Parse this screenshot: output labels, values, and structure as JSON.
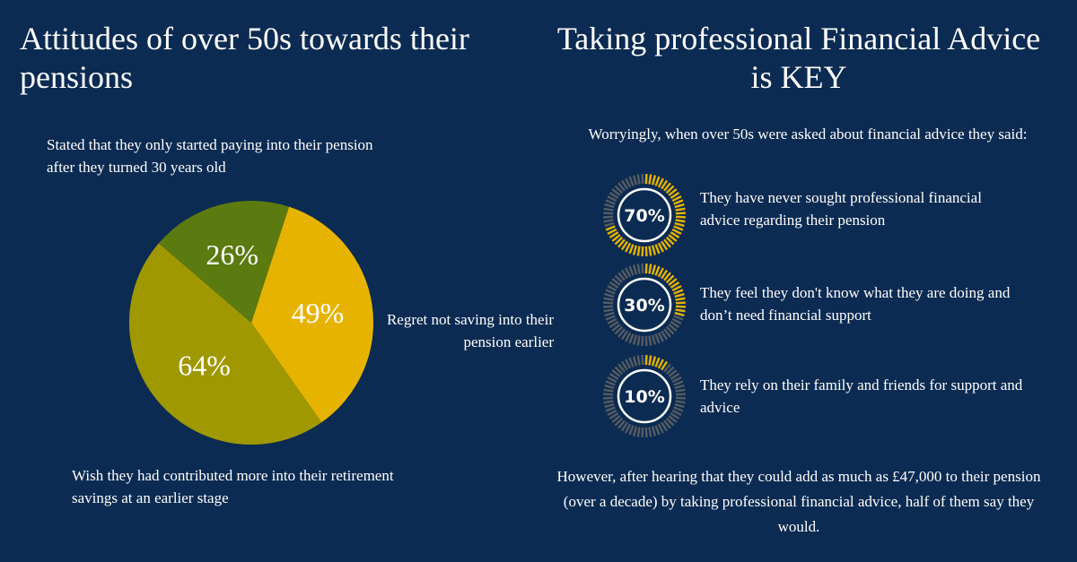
{
  "left_title": "Attitudes of over 50s towards their pensions",
  "right_title": "Taking professional Financial Advice is KEY",
  "chart_data": [
    {
      "type": "pie",
      "title": "Attitudes of over 50s towards their pensions",
      "slices": [
        {
          "label": "Regret not saving into their pension earlier",
          "value": 49,
          "display": "49%",
          "color": "#e6b300"
        },
        {
          "label": "Wish they had contributed more into their retirement savings at an earlier stage",
          "value": 64,
          "display": "64%",
          "color": "#9f9800"
        },
        {
          "label": "Stated that they only started paying into their pension after they turned 30 years old",
          "value": 26,
          "display": "26%",
          "color": "#5b7a10"
        }
      ]
    },
    {
      "type": "progress-rings",
      "items": [
        {
          "value": 70,
          "display": "70%",
          "text": "They have never sought professional financial advice regarding their pension"
        },
        {
          "value": 30,
          "display": "30%",
          "text": "They feel they don't know what they are doing and don’t need financial support"
        },
        {
          "value": 10,
          "display": "10%",
          "text": "They rely on their family and friends for support and advice"
        }
      ],
      "colors": {
        "filled": "#e6b300",
        "empty": "#555c63"
      }
    }
  ],
  "labels": {
    "top": "Stated that they only started paying into their pension after they turned 30 years old",
    "right": "Regret not saving into their pension earlier",
    "bottom": "Wish they had contributed more into their retirement savings at an earlier stage"
  },
  "intro": "Worryingly, when over 50s were asked  about financial advice they said:",
  "footer": "However, after hearing that they could add as much as £47,000 to their pension (over a decade) by taking professional financial advice, half of them say they would.",
  "colors": {
    "background": "#0c2b52",
    "text": "#ffffff"
  }
}
